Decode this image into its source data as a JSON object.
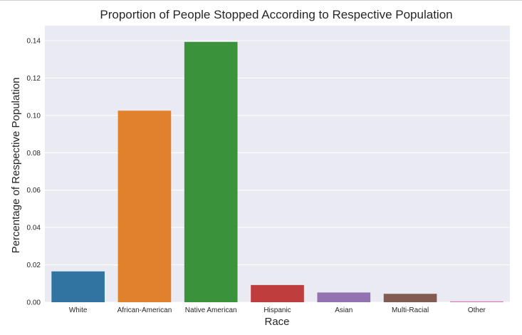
{
  "chart_data": {
    "type": "bar",
    "title": "Proportion of People Stopped According to Respective Population",
    "xlabel": "Race",
    "ylabel": "Percentage of Respective Population",
    "categories": [
      "White",
      "African-American",
      "Native American",
      "Hispanic",
      "Asian",
      "Multi-Racial",
      "Other"
    ],
    "values": [
      0.0165,
      0.1025,
      0.1393,
      0.0092,
      0.0052,
      0.0045,
      0.0005
    ],
    "colors": [
      "#3274a1",
      "#e1812c",
      "#3a923a",
      "#c03d3e",
      "#9372b2",
      "#845b53",
      "#d684bd"
    ],
    "ylim": [
      0,
      0.148
    ],
    "yticks": [
      "0.00",
      "0.02",
      "0.04",
      "0.06",
      "0.08",
      "0.10",
      "0.12",
      "0.14"
    ],
    "ytick_values": [
      0,
      0.02,
      0.04,
      0.06,
      0.08,
      0.1,
      0.12,
      0.14
    ],
    "grid": true,
    "background": "#eaeaf2"
  }
}
